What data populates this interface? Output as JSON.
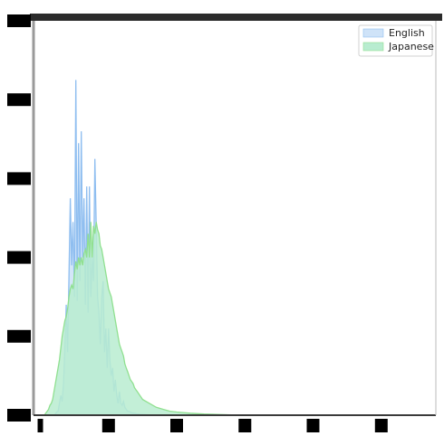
{
  "chart_data": {
    "type": "area",
    "title": "",
    "xlabel": "",
    "ylabel": "",
    "x_ticks": [
      "",
      "",
      "",
      "",
      "",
      ""
    ],
    "y_ticks": [
      "",
      "",
      "",
      "",
      "",
      ""
    ],
    "grid": false,
    "legend_placement": "top-right",
    "x": [
      0,
      2,
      4,
      6,
      8,
      10,
      12,
      14,
      16,
      18,
      20,
      22,
      24,
      26,
      28,
      30,
      32,
      34,
      36,
      38,
      40,
      42,
      44,
      46,
      48,
      50,
      52,
      54,
      56,
      58,
      60,
      62,
      64,
      66,
      68,
      70,
      72,
      74,
      76,
      78,
      80,
      82,
      84,
      86,
      88,
      90,
      92,
      94,
      96,
      98,
      100,
      102,
      104,
      106,
      108,
      110,
      112,
      114,
      116,
      118,
      120,
      122,
      124,
      126,
      128,
      130,
      132,
      134,
      136,
      138,
      140,
      142,
      144,
      146,
      148,
      150,
      160,
      170,
      180,
      190,
      200,
      220,
      240,
      260,
      280,
      300,
      320,
      340,
      360,
      380,
      400,
      420,
      440,
      460,
      480,
      500,
      520,
      540,
      560,
      580
    ],
    "series": [
      {
        "name": "English",
        "color": "#8fbef0",
        "fill": "#cfe3f8",
        "values": [
          0.0,
          0.0,
          0.0,
          0.0,
          0.0,
          0.0,
          0.0,
          0.0,
          0.0,
          0.0,
          0.0,
          0.3,
          0.8,
          1.0,
          3.0,
          5.0,
          3.5,
          8.0,
          17.0,
          28.0,
          16.0,
          35.0,
          55.0,
          38.0,
          49.0,
          30.0,
          85.0,
          29.0,
          69.0,
          34.0,
          72.0,
          40.0,
          55.0,
          28.0,
          58.0,
          26.0,
          58.0,
          30.0,
          40.0,
          34.0,
          65.0,
          48.0,
          30.0,
          26.0,
          18.0,
          30.0,
          34.0,
          16.0,
          22.0,
          12.0,
          22.0,
          14.0,
          10.0,
          12.0,
          6.0,
          9.0,
          5.0,
          3.0,
          6.0,
          3.0,
          2.5,
          3.5,
          2.0,
          1.5,
          1.0,
          1.0,
          0.8,
          0.6,
          0.5,
          0.5,
          0.4,
          0.3,
          0.3,
          0.2,
          0.2,
          0.2,
          0.1,
          0.1,
          0.1,
          0.05,
          0.05,
          0.0,
          0.0,
          0.0,
          0.0,
          0.0,
          0.0,
          0.0,
          0.0,
          0.0,
          0.0,
          0.0,
          0.0,
          0.0,
          0.0,
          0.0,
          0.0,
          0.0,
          0.0,
          0.0
        ]
      },
      {
        "name": "Japanese",
        "color": "#90e090",
        "fill": "#b8ecd0",
        "values": [
          0.0,
          0.0,
          0.0,
          0.0,
          0.5,
          1.0,
          1.5,
          2.5,
          3.0,
          4.0,
          6.0,
          8.0,
          10.0,
          12.0,
          14.0,
          17.0,
          20.0,
          22.0,
          24.0,
          25.0,
          27.0,
          30.0,
          32.0,
          33.0,
          32.0,
          36.0,
          39.0,
          37.0,
          40.0,
          38.0,
          40.0,
          38.0,
          41.0,
          42.0,
          40.0,
          46.0,
          40.0,
          49.0,
          40.0,
          48.0,
          46.0,
          49.0,
          47.0,
          46.0,
          43.0,
          42.0,
          40.0,
          38.0,
          36.0,
          34.0,
          32.0,
          31.0,
          30.0,
          28.0,
          26.0,
          24.0,
          22.0,
          20.0,
          18.0,
          17.0,
          16.0,
          15.0,
          13.0,
          12.0,
          11.0,
          10.0,
          9.0,
          8.5,
          8.0,
          7.0,
          6.5,
          6.0,
          5.5,
          5.0,
          4.5,
          4.0,
          3.0,
          2.0,
          1.5,
          1.0,
          0.8,
          0.5,
          0.3,
          0.2,
          0.1,
          0.1,
          0.1,
          0.05,
          0.05,
          0.0,
          0.0,
          0.0,
          0.0,
          0.0,
          0.0,
          0.0,
          0.0,
          0.0,
          0.0,
          0.0
        ]
      }
    ],
    "xlim": [
      -10,
      580
    ],
    "ylim": [
      0,
      100
    ]
  }
}
